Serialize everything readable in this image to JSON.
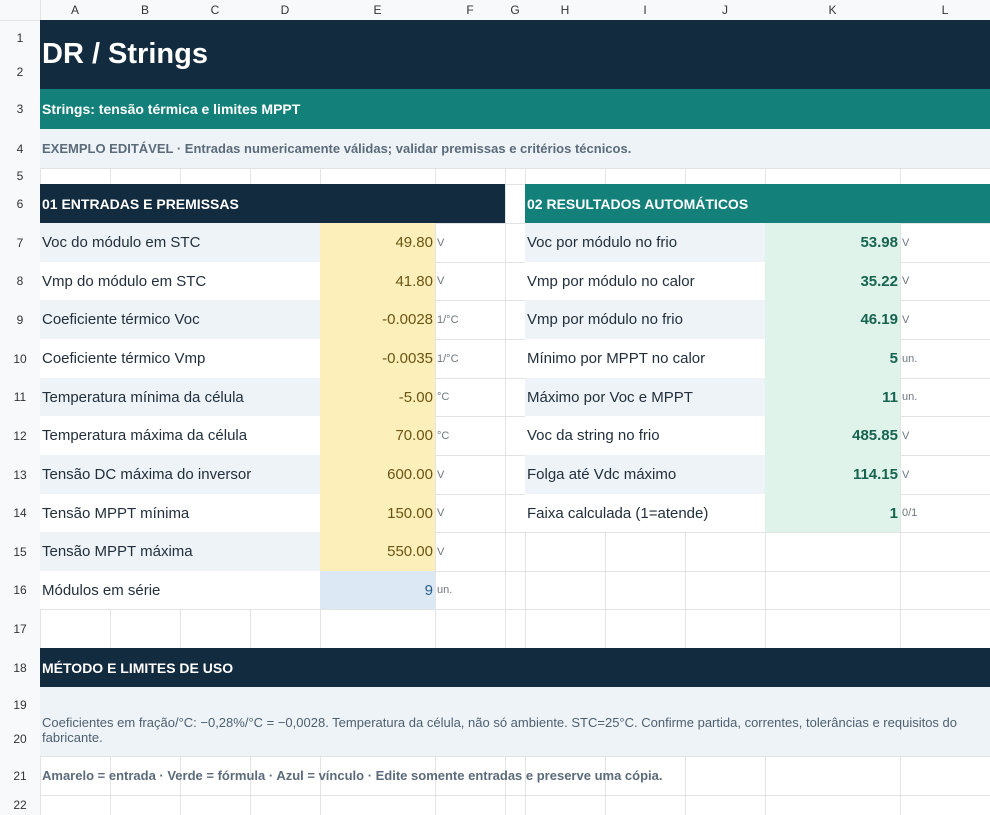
{
  "columns": [
    "A",
    "B",
    "C",
    "D",
    "E",
    "F",
    "G",
    "H",
    "I",
    "J",
    "K",
    "L"
  ],
  "rows": [
    1,
    2,
    3,
    4,
    5,
    6,
    7,
    8,
    9,
    10,
    11,
    12,
    13,
    14,
    15,
    16,
    17,
    18,
    19,
    20,
    21,
    22
  ],
  "header": {
    "title": "DR  /  Strings",
    "subtitle": "Strings: tensão térmica e limites MPPT",
    "note": "EXEMPLO EDITÁVEL · Entradas numericamente válidas; validar premissas e critérios técnicos."
  },
  "inputs": {
    "title": "01  ENTRADAS E PREMISSAS",
    "rows": [
      [
        "Voc do módulo em STC",
        "49.80",
        "V"
      ],
      [
        "Vmp do módulo em STC",
        "41.80",
        "V"
      ],
      [
        "Coeficiente térmico Voc",
        "-0.0028",
        "1/°C"
      ],
      [
        "Coeficiente térmico Vmp",
        "-0.0035",
        "1/°C"
      ],
      [
        "Temperatura mínima da célula",
        "-5.00",
        "°C"
      ],
      [
        "Temperatura máxima da célula",
        "70.00",
        "°C"
      ],
      [
        "Tensão DC máxima do inversor",
        "600.00",
        "V"
      ],
      [
        "Tensão MPPT mínima",
        "150.00",
        "V"
      ],
      [
        "Tensão MPPT máxima",
        "550.00",
        "V"
      ],
      [
        "Módulos em série",
        "9",
        "un."
      ]
    ]
  },
  "results": {
    "title": "02  RESULTADOS AUTOMÁTICOS",
    "rows": [
      [
        "Voc por módulo no frio",
        "53.98",
        "V"
      ],
      [
        "Vmp por módulo no calor",
        "35.22",
        "V"
      ],
      [
        "Vmp por módulo no frio",
        "46.19",
        "V"
      ],
      [
        "Mínimo por MPPT no calor",
        "5",
        "un."
      ],
      [
        "Máximo por Voc e MPPT",
        "11",
        "un."
      ],
      [
        "Voc da string no frio",
        "485.85",
        "V"
      ],
      [
        "Folga até Vdc máximo",
        "114.15",
        "V"
      ],
      [
        "Faixa calculada (1=atende)",
        "1",
        "0/1"
      ]
    ]
  },
  "method": {
    "title": "MÉTODO E LIMITES DE USO",
    "text": "Coeficientes em fração/°C: −0,28%/°C = −0,0028. Temperatura da célula, não só ambiente. STC=25°C. Confirme partida, correntes, tolerâncias e requisitos do fabricante.",
    "legend": "Amarelo = entrada · Verde = fórmula · Azul = vínculo · Edite somente entradas e preserve uma cópia."
  }
}
